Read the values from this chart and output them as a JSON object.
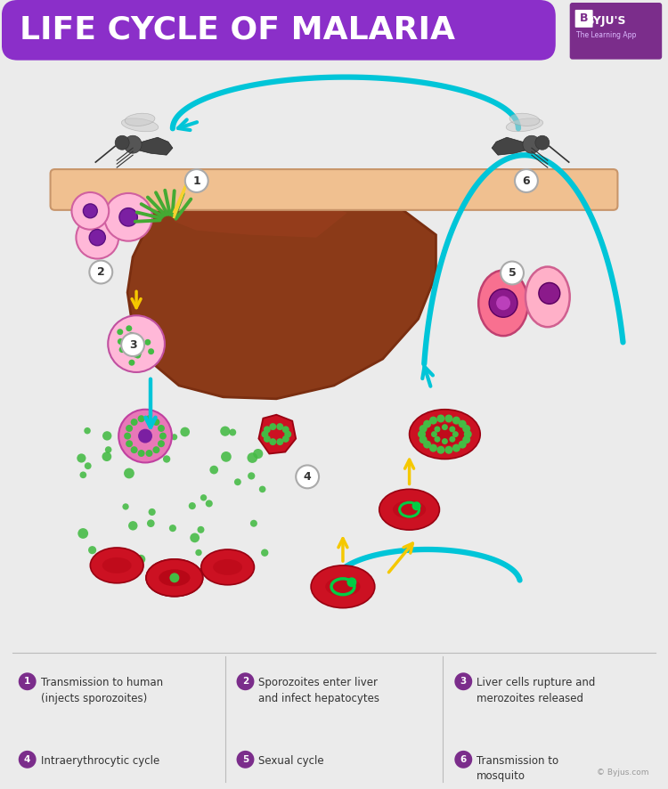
{
  "title": "LIFE CYCLE OF MALARIA",
  "title_bg_color": "#8B2FC9",
  "title_text_color": "#FFFFFF",
  "bg_color": "#EBEBEB",
  "legend": [
    {
      "num": "1",
      "text": "Transmission to human\n(injects sporozoites)"
    },
    {
      "num": "2",
      "text": "Sporozoites enter liver\nand infect hepatocytes"
    },
    {
      "num": "3",
      "text": "Liver cells rupture and\nmerozoites released"
    },
    {
      "num": "4",
      "text": "Intraerythrocytic cycle"
    },
    {
      "num": "5",
      "text": "Sexual cycle"
    },
    {
      "num": "6",
      "text": "Transmission to\nmosquito"
    }
  ],
  "legend_bullet_color": "#7B2D8B",
  "legend_text_color": "#333333",
  "divider_color": "#BBBBBB",
  "copyright_text": "© Byjus.com",
  "byju_logo_color": "#7B2D8B",
  "skin_bar_color": "#F0C090",
  "cyan_arrow_color": "#00C5D8",
  "yellow_arrow_color": "#F5C800",
  "liver_dark": "#7A2E10",
  "liver_mid": "#8B3A18",
  "liver_light": "#A04020",
  "red_cell_color": "#CC1122",
  "red_cell_dark": "#990011",
  "pink_cell_color": "#F090C0",
  "pink_cell_light": "#FFB8D8",
  "green_dot_color": "#44BB44",
  "purple_nucleus": "#7B1FA2",
  "number_circle_bg": "#FFFFFF",
  "number_circle_border": "#AAAAAA"
}
